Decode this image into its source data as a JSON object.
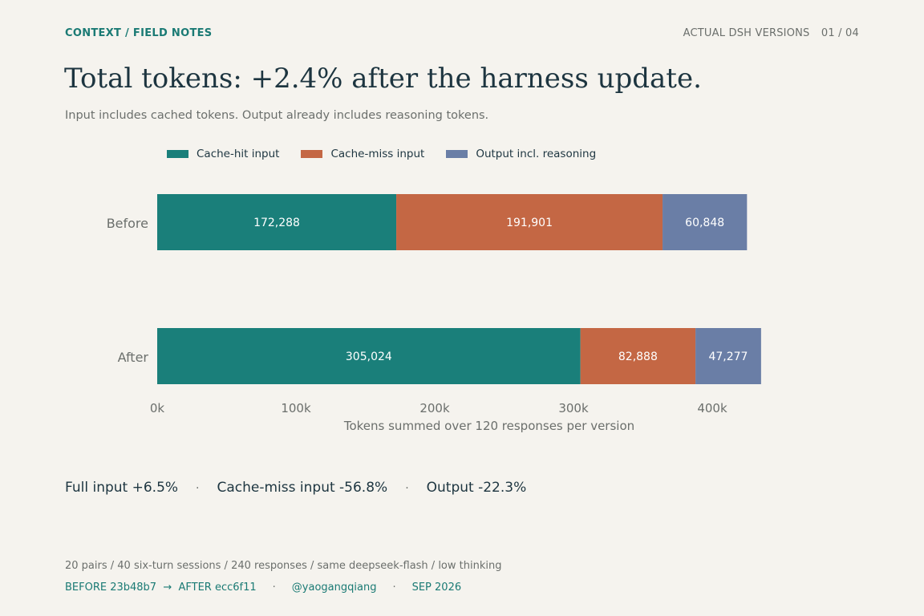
{
  "header": {
    "kicker": "CONTEXT / FIELD NOTES",
    "right_label": "ACTUAL DSH VERSIONS",
    "page_indicator": "01 / 04"
  },
  "colors": {
    "cache_hit": "#1a7f7a",
    "cache_miss": "#c46744",
    "output": "#6a7ea6",
    "accent": "#1a7a74"
  },
  "chart_data": {
    "type": "bar",
    "orientation": "horizontal",
    "stacked": true,
    "title": "Total tokens: +2.4% after the harness update.",
    "subtitle": "Input includes cached tokens. Output already includes reasoning tokens.",
    "categories": [
      "Before",
      "After"
    ],
    "series": [
      {
        "name": "Cache-hit input",
        "values": [
          172288,
          305024
        ],
        "labels": [
          "172,288",
          "305,024"
        ]
      },
      {
        "name": "Cache-miss input",
        "values": [
          191901,
          82888
        ],
        "labels": [
          "191,901",
          "82,888"
        ]
      },
      {
        "name": "Output incl. reasoning",
        "values": [
          60848,
          47277
        ],
        "labels": [
          "60,848",
          "47,277"
        ]
      }
    ],
    "xlabel": "Tokens summed over 120 responses per version",
    "ylabel": "",
    "xlim": [
      0,
      440000
    ],
    "xticks": [
      0,
      100000,
      200000,
      300000,
      400000
    ],
    "xtick_labels": [
      "0k",
      "100k",
      "200k",
      "300k",
      "400k"
    ],
    "grid": false,
    "legend_position": "top"
  },
  "stats": {
    "full_input": "Full input +6.5%",
    "cache_miss": "Cache-miss input -56.8%",
    "output": "Output -22.3%",
    "separator": "·"
  },
  "footer": {
    "method": "20 pairs / 40 six-turn sessions / 240 responses / same deepseek-flash / low thinking",
    "versions": "BEFORE 23b48b7  →  AFTER ecc6f11",
    "handle": "@yaogangqiang",
    "date": "SEP 2026",
    "separator": "·"
  }
}
